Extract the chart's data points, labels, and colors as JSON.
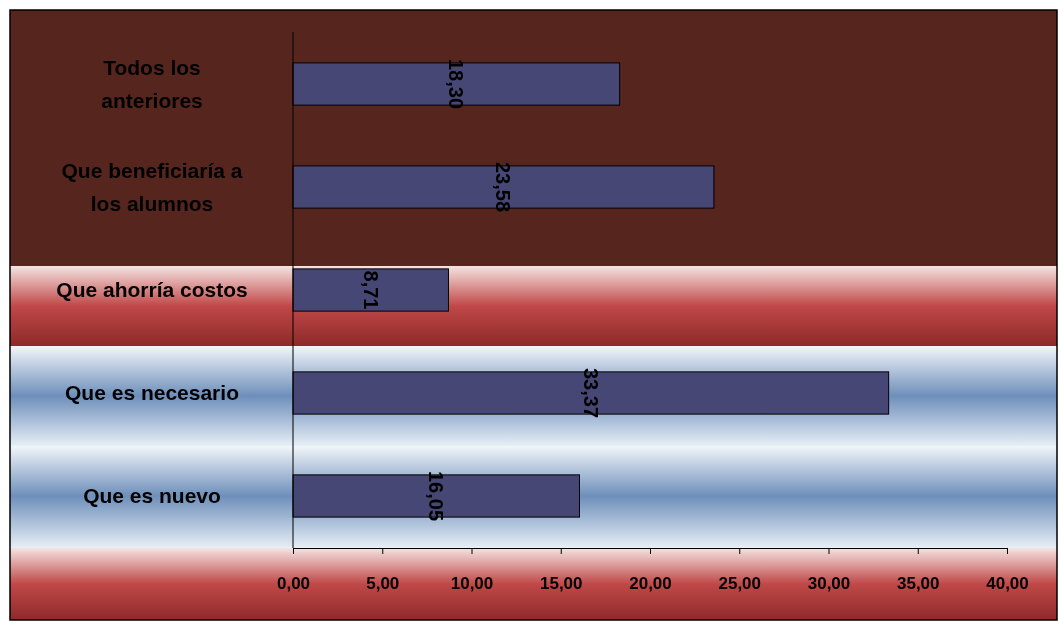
{
  "chart_data": {
    "type": "bar",
    "orientation": "horizontal",
    "categories": [
      "Todos los anteriores",
      "Que beneficiaría a los alumnos",
      "Que ahorría costos",
      "Que es necesario",
      "Que es nuevo"
    ],
    "values": [
      18.3,
      23.58,
      8.71,
      33.37,
      16.05
    ],
    "value_labels": [
      "18,30",
      "23,58",
      "8,71",
      "33,37",
      "16,05"
    ],
    "color": "#474775",
    "xlim": [
      0,
      40
    ],
    "xticks": [
      {
        "value": 0,
        "label": "0,00"
      },
      {
        "value": 5,
        "label": "5,00"
      },
      {
        "value": 10,
        "label": "10,00"
      },
      {
        "value": 15,
        "label": "15,00"
      },
      {
        "value": 20,
        "label": "20,00"
      },
      {
        "value": 25,
        "label": "25,00"
      },
      {
        "value": 30,
        "label": "30,00"
      },
      {
        "value": 35,
        "label": "35,00"
      },
      {
        "value": 40,
        "label": "40,00"
      }
    ],
    "grid": false
  }
}
